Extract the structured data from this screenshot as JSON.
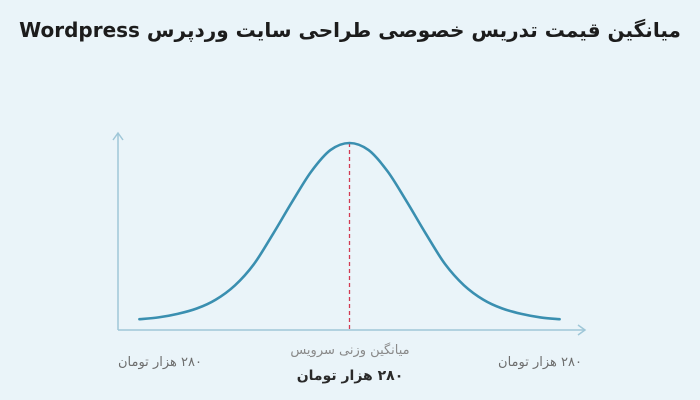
{
  "chart_data": {
    "type": "line",
    "title": "میانگین قیمت تدریس خصوصی طراحی سایت وردپرس Wordpress",
    "distribution": "normal",
    "curve_color": "#3a8fb0",
    "axis_color": "#9fc7d8",
    "mean_line_color": "#d23a52",
    "axis_range": {
      "x": [
        -3.4,
        3.4
      ],
      "y": [
        0,
        1.0
      ]
    },
    "x": [
      -3.3,
      -3.0,
      -2.7,
      -2.4,
      -2.1,
      -1.8,
      -1.5,
      -1.2,
      -0.9,
      -0.6,
      -0.3,
      0,
      0.3,
      0.6,
      0.9,
      1.2,
      1.5,
      1.8,
      2.1,
      2.4,
      2.7,
      3.0,
      3.3
    ],
    "y": [
      0.01,
      0.02,
      0.04,
      0.07,
      0.12,
      0.2,
      0.32,
      0.49,
      0.67,
      0.84,
      0.96,
      1.0,
      0.96,
      0.84,
      0.67,
      0.49,
      0.32,
      0.2,
      0.12,
      0.07,
      0.04,
      0.02,
      0.01
    ],
    "mean_x": 0,
    "labels": {
      "left": "۲۸۰ هزار تومان",
      "right": "۲۸۰ هزار تومان",
      "center_caption": "میانگین وزنی سرویس",
      "center_value": "۲۸۰ هزار تومان"
    }
  }
}
